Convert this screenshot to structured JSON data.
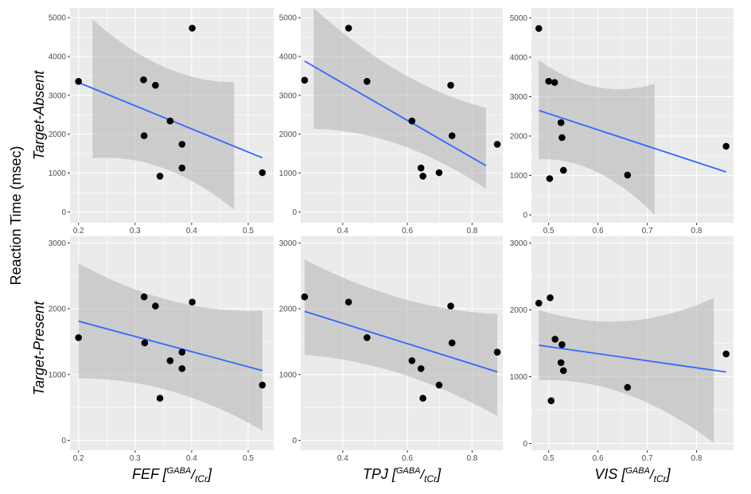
{
  "y_axis_label": "Reaction Time (msec)",
  "row_labels": [
    "Target-Absent",
    "Target-Present"
  ],
  "x_labels": [
    {
      "region": "FEF",
      "numerator": "GABA",
      "denominator": "tCr"
    },
    {
      "region": "TPJ",
      "numerator": "GABA",
      "denominator": "tCr"
    },
    {
      "region": "VIS",
      "numerator": "GABA",
      "denominator": "tCr"
    }
  ],
  "colors": {
    "panel": "#ebebeb",
    "grid": "#ffffff",
    "line": "#3366ff",
    "ribbon": "#b3b3b3",
    "point": "#000000"
  },
  "chart_data": [
    {
      "type": "scatter",
      "row": "Target-Absent",
      "column": "FEF",
      "xlim": [
        0.185,
        0.545
      ],
      "ylim": [
        -280,
        5250
      ],
      "xticks": [
        0.2,
        0.3,
        0.4,
        0.5
      ],
      "xtick_labels": [
        "0.2",
        "0.3",
        "0.4",
        "0.5"
      ],
      "yticks": [
        0,
        1000,
        2000,
        3000,
        4000,
        5000
      ],
      "ytick_labels": [
        "0",
        "1000",
        "2000",
        "3000",
        "4000",
        "5000"
      ],
      "points": [
        [
          0.2,
          3360
        ],
        [
          0.315,
          3400
        ],
        [
          0.316,
          1960
        ],
        [
          0.336,
          3260
        ],
        [
          0.344,
          920
        ],
        [
          0.362,
          2340
        ],
        [
          0.383,
          1740
        ],
        [
          0.383,
          1130
        ],
        [
          0.401,
          4730
        ],
        [
          0.525,
          1010
        ]
      ],
      "fit_line": [
        [
          0.2,
          3330
        ],
        [
          0.525,
          1390
        ]
      ],
      "ci_band": {
        "x": [
          0.225,
          0.475
        ],
        "upper": [
          4950,
          3340
        ],
        "lower": [
          1380,
          60
        ]
      }
    },
    {
      "type": "scatter",
      "row": "Target-Absent",
      "column": "TPJ",
      "xlim": [
        0.27,
        0.895
      ],
      "ylim": [
        -280,
        5250
      ],
      "xticks": [
        0.4,
        0.6,
        0.8
      ],
      "xtick_labels": [
        "0.4",
        "0.6",
        "0.8"
      ],
      "yticks": [
        0,
        1000,
        2000,
        3000,
        4000,
        5000
      ],
      "ytick_labels": [
        "0",
        "1000",
        "2000",
        "3000",
        "4000",
        "5000"
      ],
      "points": [
        [
          0.282,
          3390
        ],
        [
          0.418,
          4730
        ],
        [
          0.475,
          3360
        ],
        [
          0.614,
          2340
        ],
        [
          0.642,
          1130
        ],
        [
          0.648,
          920
        ],
        [
          0.698,
          1010
        ],
        [
          0.734,
          3260
        ],
        [
          0.738,
          1960
        ],
        [
          0.878,
          1740
        ]
      ],
      "fit_line": [
        [
          0.282,
          3880
        ],
        [
          0.843,
          1190
        ]
      ],
      "ci_band": {
        "x": [
          0.31,
          0.843
        ],
        "upper": [
          5250,
          2680
        ],
        "lower": [
          2140,
          590
        ]
      }
    },
    {
      "type": "scatter",
      "row": "Target-Absent",
      "column": "VIS",
      "xlim": [
        0.465,
        0.875
      ],
      "ylim": [
        -200,
        5250
      ],
      "xticks": [
        0.5,
        0.6,
        0.7,
        0.8
      ],
      "xtick_labels": [
        "0.5",
        "0.6",
        "0.7",
        "0.8"
      ],
      "yticks": [
        0,
        1000,
        2000,
        3000,
        4000,
        5000
      ],
      "ytick_labels": [
        "0",
        "1000",
        "2000",
        "3000",
        "4000",
        "5000"
      ],
      "points": [
        [
          0.48,
          4730
        ],
        [
          0.5,
          3390
        ],
        [
          0.502,
          920
        ],
        [
          0.512,
          3360
        ],
        [
          0.525,
          2340
        ],
        [
          0.527,
          1960
        ],
        [
          0.53,
          1130
        ],
        [
          0.66,
          1010
        ],
        [
          0.86,
          1740
        ]
      ],
      "fit_line": [
        [
          0.48,
          2650
        ],
        [
          0.86,
          1090
        ]
      ],
      "ci_band": {
        "x": [
          0.48,
          0.715
        ],
        "upper": [
          3930,
          3330
        ],
        "lower": [
          1410,
          0
        ]
      }
    },
    {
      "type": "scatter",
      "row": "Target-Present",
      "column": "FEF",
      "xlim": [
        0.185,
        0.545
      ],
      "ylim": [
        -150,
        3100
      ],
      "xticks": [
        0.2,
        0.3,
        0.4,
        0.5
      ],
      "xtick_labels": [
        "0.2",
        "0.3",
        "0.4",
        "0.5"
      ],
      "yticks": [
        0,
        1000,
        2000,
        3000
      ],
      "ytick_labels": [
        "0",
        "1000",
        "2000",
        "3000"
      ],
      "points": [
        [
          0.2,
          1560
        ],
        [
          0.316,
          2180
        ],
        [
          0.317,
          1480
        ],
        [
          0.336,
          2040
        ],
        [
          0.344,
          640
        ],
        [
          0.362,
          1210
        ],
        [
          0.383,
          1340
        ],
        [
          0.383,
          1090
        ],
        [
          0.401,
          2100
        ],
        [
          0.525,
          840
        ]
      ],
      "fit_line": [
        [
          0.2,
          1810
        ],
        [
          0.525,
          1060
        ]
      ],
      "ci_band": {
        "x": [
          0.2,
          0.525
        ],
        "upper": [
          2690,
          1970
        ],
        "lower": [
          940,
          150
        ]
      }
    },
    {
      "type": "scatter",
      "row": "Target-Present",
      "column": "TPJ",
      "xlim": [
        0.27,
        0.895
      ],
      "ylim": [
        -150,
        3100
      ],
      "xticks": [
        0.4,
        0.6,
        0.8
      ],
      "xtick_labels": [
        "0.4",
        "0.6",
        "0.8"
      ],
      "yticks": [
        0,
        1000,
        2000,
        3000
      ],
      "ytick_labels": [
        "0",
        "1000",
        "2000",
        "3000"
      ],
      "points": [
        [
          0.282,
          2180
        ],
        [
          0.418,
          2100
        ],
        [
          0.475,
          1560
        ],
        [
          0.614,
          1210
        ],
        [
          0.642,
          1090
        ],
        [
          0.648,
          640
        ],
        [
          0.698,
          840
        ],
        [
          0.734,
          2040
        ],
        [
          0.738,
          1480
        ],
        [
          0.878,
          1340
        ]
      ],
      "fit_line": [
        [
          0.282,
          1960
        ],
        [
          0.878,
          1040
        ]
      ],
      "ci_band": {
        "x": [
          0.282,
          0.878
        ],
        "upper": [
          2750,
          1920
        ],
        "lower": [
          1300,
          370
        ]
      }
    },
    {
      "type": "scatter",
      "row": "Target-Present",
      "column": "VIS",
      "xlim": [
        0.465,
        0.875
      ],
      "ylim": [
        -100,
        3100
      ],
      "xticks": [
        0.5,
        0.6,
        0.7,
        0.8
      ],
      "xtick_labels": [
        "0.5",
        "0.6",
        "0.7",
        "0.8"
      ],
      "yticks": [
        0,
        1000,
        2000,
        3000
      ],
      "ytick_labels": [
        "0",
        "1000",
        "2000",
        "3000"
      ],
      "points": [
        [
          0.48,
          2100
        ],
        [
          0.503,
          2180
        ],
        [
          0.505,
          640
        ],
        [
          0.513,
          1560
        ],
        [
          0.525,
          1210
        ],
        [
          0.527,
          1480
        ],
        [
          0.53,
          1090
        ],
        [
          0.66,
          840
        ],
        [
          0.86,
          1340
        ]
      ],
      "fit_line": [
        [
          0.48,
          1470
        ],
        [
          0.86,
          1070
        ]
      ],
      "ci_band": {
        "x": [
          0.48,
          0.835
        ],
        "upper": [
          2000,
          2180
        ],
        "lower": [
          950,
          10
        ]
      }
    }
  ]
}
